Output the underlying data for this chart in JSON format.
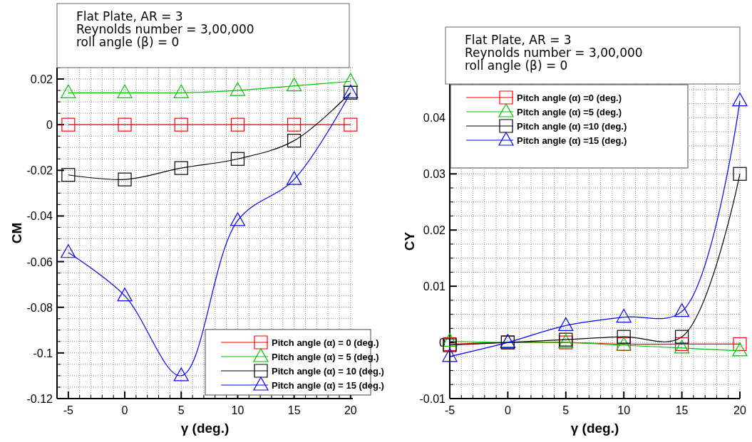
{
  "chart_data": [
    {
      "type": "line",
      "xlabel": "γ (deg.)",
      "ylabel": "CM",
      "annotations": [
        "Flat Plate, AR = 3",
        "Reynolds number = 3,00,000",
        "roll angle (β)  = 0"
      ],
      "x": [
        -5,
        0,
        5,
        10,
        15,
        20
      ],
      "series": [
        {
          "name": "Pitch angle (α) = 0 (deg.)",
          "color": "#ff0000",
          "marker": "square",
          "values": [
            0,
            0,
            0,
            0,
            0,
            0
          ]
        },
        {
          "name": "Pitch angle (α) = 5 (deg.)",
          "color": "#00c000",
          "marker": "triangle",
          "values": [
            0.014,
            0.014,
            0.014,
            0.015,
            0.017,
            0.019
          ]
        },
        {
          "name": "Pitch angle (α) = 10 (deg.)",
          "color": "#000000",
          "marker": "square",
          "values": [
            -0.022,
            -0.024,
            -0.019,
            -0.015,
            -0.007,
            0.014
          ]
        },
        {
          "name": "Pitch angle (α) = 15 (deg.)",
          "color": "#0000ff",
          "marker": "triangle",
          "values": [
            -0.056,
            -0.075,
            -0.11,
            -0.042,
            -0.024,
            0.014
          ]
        }
      ],
      "xlim": [
        -6,
        20.2
      ],
      "xticks": [
        {
          "value": -6,
          "label": null
        },
        -5,
        {
          "value": -4,
          "label": null
        },
        {
          "value": -3,
          "label": null
        },
        {
          "value": -2,
          "label": null
        },
        {
          "value": -1,
          "label": null
        },
        0,
        {
          "value": 1,
          "label": null
        },
        {
          "value": 2,
          "label": null
        },
        {
          "value": 3,
          "label": null
        },
        {
          "value": 4,
          "label": null
        },
        5,
        {
          "value": 6,
          "label": null
        },
        {
          "value": 7,
          "label": null
        },
        {
          "value": 8,
          "label": null
        },
        {
          "value": 9,
          "label": null
        },
        10,
        {
          "value": 11,
          "label": null
        },
        {
          "value": 12,
          "label": null
        },
        {
          "value": 13,
          "label": null
        },
        {
          "value": 14,
          "label": null
        },
        15,
        {
          "value": 16,
          "label": null
        },
        {
          "value": 17,
          "label": null
        },
        {
          "value": 18,
          "label": null
        },
        {
          "value": 19,
          "label": null
        },
        20
      ],
      "ylim": [
        -0.12,
        0.025
      ],
      "yticks": [
        -0.12,
        {
          "value": -0.115,
          "label": null
        },
        {
          "value": -0.11,
          "label": null
        },
        {
          "value": -0.105,
          "label": null
        },
        -0.1,
        {
          "value": -0.095,
          "label": null
        },
        {
          "value": -0.09,
          "label": null
        },
        {
          "value": -0.085,
          "label": null
        },
        -0.08,
        {
          "value": -0.075,
          "label": null
        },
        {
          "value": -0.07,
          "label": null
        },
        {
          "value": -0.065,
          "label": null
        },
        -0.06,
        {
          "value": -0.055,
          "label": null
        },
        {
          "value": -0.05,
          "label": null
        },
        {
          "value": -0.045,
          "label": null
        },
        -0.04,
        {
          "value": -0.035,
          "label": null
        },
        {
          "value": -0.03,
          "label": null
        },
        {
          "value": -0.025,
          "label": null
        },
        -0.02,
        {
          "value": -0.015,
          "label": null
        },
        {
          "value": -0.01,
          "label": null
        },
        {
          "value": -0.005,
          "label": null
        },
        0,
        {
          "value": 0.005,
          "label": null
        },
        {
          "value": 0.01,
          "label": null
        },
        {
          "value": 0.015,
          "label": null
        },
        0.02,
        {
          "value": 0.025,
          "label": null
        }
      ],
      "grid": true,
      "legend": "bottom right"
    },
    {
      "type": "line",
      "xlabel": "γ (deg.)",
      "ylabel": "CY",
      "annotations": [
        "Flat Plate, AR = 3",
        "Reynolds number = 3,00,000",
        "roll angle (β)  = 0"
      ],
      "x": [
        -5,
        0,
        5,
        10,
        15,
        20
      ],
      "series": [
        {
          "name": "Pitch angle (α) =0 (deg.)",
          "color": "#ff0000",
          "marker": "square",
          "values": [
            -0.0003,
            0,
            0,
            -0.0003,
            -0.0003,
            -0.0003
          ]
        },
        {
          "name": "Pitch angle (α) =5 (deg.)",
          "color": "#00c000",
          "marker": "triangle",
          "values": [
            0.0002,
            0,
            0,
            -0.0005,
            -0.001,
            -0.0015
          ]
        },
        {
          "name": "Pitch angle (α) =10 (deg.)",
          "color": "#000000",
          "marker": "square",
          "values": [
            -0.0005,
            0,
            0.0005,
            0.001,
            0.001,
            0.03
          ]
        },
        {
          "name": "Pitch angle (α) =15 (deg.)",
          "color": "#0000ff",
          "marker": "triangle",
          "values": [
            -0.0025,
            0,
            0.003,
            0.0045,
            0.0055,
            0.043
          ]
        }
      ],
      "xlim": [
        -5,
        20
      ],
      "xticks": [
        -5,
        {
          "value": -4,
          "label": null
        },
        {
          "value": -3,
          "label": null
        },
        {
          "value": -2,
          "label": null
        },
        {
          "value": -1,
          "label": null
        },
        0,
        {
          "value": 1,
          "label": null
        },
        {
          "value": 2,
          "label": null
        },
        {
          "value": 3,
          "label": null
        },
        {
          "value": 4,
          "label": null
        },
        5,
        {
          "value": 6,
          "label": null
        },
        {
          "value": 7,
          "label": null
        },
        {
          "value": 8,
          "label": null
        },
        {
          "value": 9,
          "label": null
        },
        10,
        {
          "value": 11,
          "label": null
        },
        {
          "value": 12,
          "label": null
        },
        {
          "value": 13,
          "label": null
        },
        {
          "value": 14,
          "label": null
        },
        15,
        {
          "value": 16,
          "label": null
        },
        {
          "value": 17,
          "label": null
        },
        {
          "value": 18,
          "label": null
        },
        {
          "value": 19,
          "label": null
        },
        20
      ],
      "ylim": [
        -0.01,
        0.046
      ],
      "yticks": [
        -0.01,
        {
          "value": -0.0075,
          "label": null
        },
        {
          "value": -0.005,
          "label": null
        },
        {
          "value": -0.0025,
          "label": null
        },
        0,
        {
          "value": 0.0025,
          "label": null
        },
        {
          "value": 0.005,
          "label": null
        },
        {
          "value": 0.0075,
          "label": null
        },
        0.01,
        {
          "value": 0.0125,
          "label": null
        },
        {
          "value": 0.015,
          "label": null
        },
        {
          "value": 0.0175,
          "label": null
        },
        0.02,
        {
          "value": 0.0225,
          "label": null
        },
        {
          "value": 0.025,
          "label": null
        },
        {
          "value": 0.0275,
          "label": null
        },
        0.03,
        {
          "value": 0.0325,
          "label": null
        },
        {
          "value": 0.035,
          "label": null
        },
        {
          "value": 0.0375,
          "label": null
        },
        0.04,
        {
          "value": 0.0425,
          "label": null
        },
        {
          "value": 0.045,
          "label": null
        }
      ],
      "grid": true,
      "legend": "top left"
    }
  ]
}
